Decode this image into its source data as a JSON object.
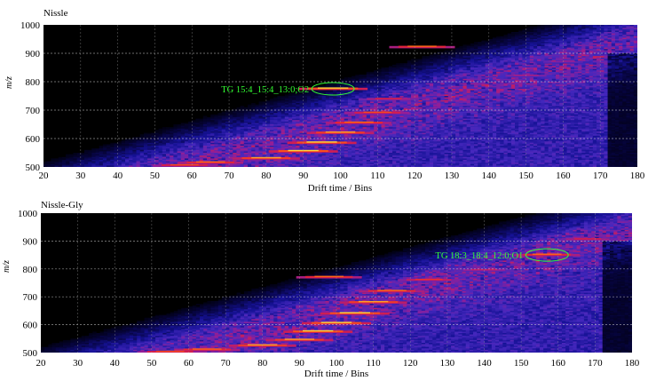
{
  "chart_data": [
    {
      "type": "heatmap",
      "title": "Nissle",
      "xlabel": "Drift time / Bins",
      "ylabel": "m/z",
      "xlim": [
        20,
        180
      ],
      "ylim": [
        500,
        1000
      ],
      "x_ticks": [
        "20",
        "30",
        "40",
        "50",
        "60",
        "70",
        "80",
        "90",
        "100",
        "110",
        "120",
        "130",
        "140",
        "150",
        "160",
        "170",
        "180"
      ],
      "y_ticks": [
        "500",
        "600",
        "700",
        "800",
        "900",
        "1000"
      ],
      "grid": true,
      "annotation": {
        "text": "TG 15:4_15:4_13:0;O2",
        "x": 98,
        "y": 775
      },
      "hotspots": [
        {
          "x": 122,
          "y": 922,
          "i": 0.85
        },
        {
          "x": 98,
          "y": 775,
          "i": 0.95
        },
        {
          "x": 150,
          "y": 820,
          "i": 0.6
        },
        {
          "x": 160,
          "y": 868,
          "i": 0.55
        },
        {
          "x": 113,
          "y": 738,
          "i": 0.7
        },
        {
          "x": 110,
          "y": 690,
          "i": 0.8
        },
        {
          "x": 105,
          "y": 655,
          "i": 0.85
        },
        {
          "x": 100,
          "y": 620,
          "i": 0.9
        },
        {
          "x": 95,
          "y": 585,
          "i": 0.95
        },
        {
          "x": 90,
          "y": 555,
          "i": 0.95
        },
        {
          "x": 80,
          "y": 530,
          "i": 0.9
        },
        {
          "x": 65,
          "y": 515,
          "i": 0.85
        },
        {
          "x": 58,
          "y": 505,
          "i": 0.8
        }
      ]
    },
    {
      "type": "heatmap",
      "title": "Nissle-Gly",
      "xlabel": "Drift time / Bins",
      "ylabel": "m/z",
      "xlim": [
        20,
        180
      ],
      "ylim": [
        500,
        1000
      ],
      "x_ticks": [
        "20",
        "30",
        "40",
        "50",
        "60",
        "70",
        "80",
        "90",
        "100",
        "110",
        "120",
        "130",
        "140",
        "150",
        "160",
        "170",
        "180"
      ],
      "y_ticks": [
        "500",
        "600",
        "700",
        "800",
        "900",
        "1000"
      ],
      "grid": true,
      "annotation": {
        "text": "TG 18:3_18:4_12:0;O1",
        "x": 157,
        "y": 850
      },
      "hotspots": [
        {
          "x": 98,
          "y": 770,
          "i": 0.85
        },
        {
          "x": 157,
          "y": 850,
          "i": 0.85
        },
        {
          "x": 168,
          "y": 905,
          "i": 0.7
        },
        {
          "x": 140,
          "y": 795,
          "i": 0.65
        },
        {
          "x": 125,
          "y": 760,
          "i": 0.75
        },
        {
          "x": 115,
          "y": 720,
          "i": 0.85
        },
        {
          "x": 110,
          "y": 680,
          "i": 0.9
        },
        {
          "x": 105,
          "y": 640,
          "i": 0.95
        },
        {
          "x": 100,
          "y": 605,
          "i": 0.95
        },
        {
          "x": 95,
          "y": 575,
          "i": 0.95
        },
        {
          "x": 90,
          "y": 545,
          "i": 0.9
        },
        {
          "x": 80,
          "y": 525,
          "i": 0.9
        },
        {
          "x": 65,
          "y": 510,
          "i": 0.85
        },
        {
          "x": 55,
          "y": 502,
          "i": 0.8
        }
      ]
    }
  ]
}
